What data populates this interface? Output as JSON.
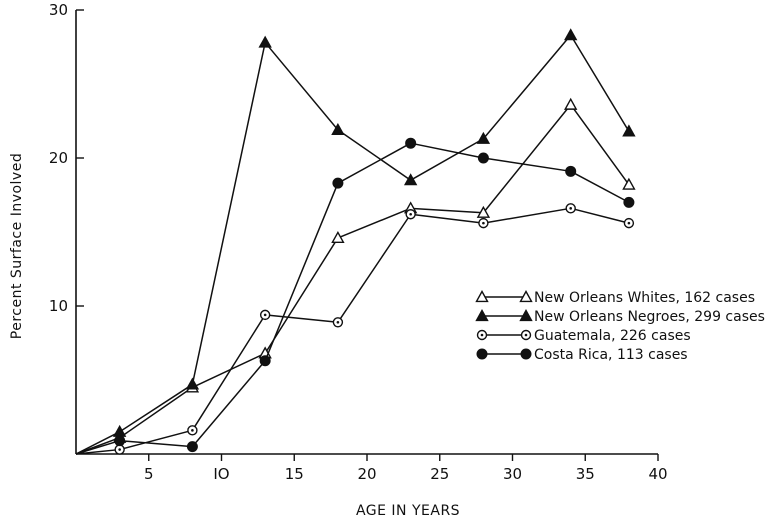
{
  "chart_data": {
    "type": "line",
    "title": "",
    "xlabel": "AGE IN YEARS",
    "ylabel": "Percent Surface Involved",
    "xlim": [
      0,
      40
    ],
    "ylim": [
      0,
      30
    ],
    "xticks": [
      5,
      10,
      15,
      20,
      25,
      30,
      35,
      40
    ],
    "xtick_labels": [
      "5",
      "IO",
      "15",
      "20",
      "25",
      "30",
      "35",
      "40"
    ],
    "yticks": [
      10,
      20,
      30
    ],
    "ytick_labels": [
      "10",
      "20",
      "30"
    ],
    "grid": false,
    "legend_position": "right",
    "series": [
      {
        "name": "New Orleans Whites, 162 cases",
        "marker": "open-triangle",
        "x": [
          0,
          3,
          8,
          13,
          18,
          23,
          28,
          34,
          38
        ],
        "y": [
          0,
          1.1,
          4.5,
          6.8,
          14.6,
          16.6,
          16.3,
          23.6,
          18.2
        ]
      },
      {
        "name": "New Orleans Negroes, 299 cases",
        "marker": "filled-triangle",
        "x": [
          0,
          3,
          8,
          13,
          18,
          23,
          28,
          34,
          38
        ],
        "y": [
          0,
          1.5,
          4.7,
          27.8,
          21.9,
          18.5,
          21.3,
          28.3,
          21.8
        ]
      },
      {
        "name": "Guatemala, 226 cases",
        "marker": "dotted-circle",
        "x": [
          0,
          3,
          8,
          13,
          18,
          23,
          28,
          34,
          38
        ],
        "y": [
          0,
          0.3,
          1.6,
          9.4,
          8.9,
          16.2,
          15.6,
          16.6,
          15.6
        ]
      },
      {
        "name": "Costa Rica, 113 cases",
        "marker": "filled-circle",
        "x": [
          0,
          3,
          8,
          13,
          18,
          23,
          28,
          34,
          38
        ],
        "y": [
          0,
          0.9,
          0.5,
          6.3,
          18.3,
          21.0,
          20.0,
          19.1,
          17.0
        ]
      }
    ]
  }
}
